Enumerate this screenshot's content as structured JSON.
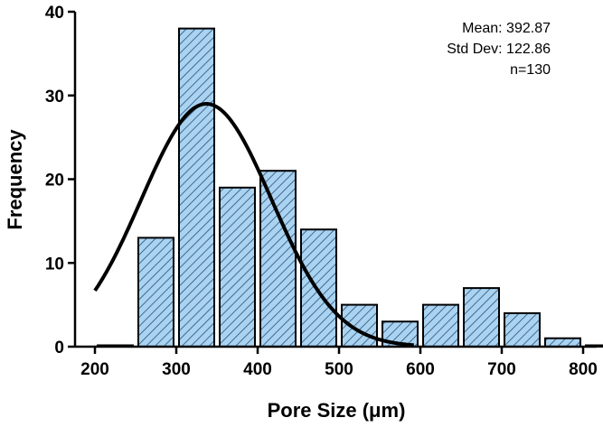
{
  "chart_data": {
    "type": "bar",
    "subtype": "histogram",
    "title": "",
    "xlabel": "Pore Size (μm)",
    "ylabel": "Frequency",
    "xlim": [
      200,
      800
    ],
    "ylim": [
      0,
      40
    ],
    "xticks": [
      200,
      300,
      400,
      500,
      600,
      700,
      800
    ],
    "yticks": [
      0,
      10,
      20,
      30,
      40
    ],
    "bin_width": 50,
    "bins": [
      {
        "center": 225,
        "value": 0
      },
      {
        "center": 275,
        "value": 13
      },
      {
        "center": 325,
        "value": 38
      },
      {
        "center": 375,
        "value": 19
      },
      {
        "center": 425,
        "value": 21
      },
      {
        "center": 475,
        "value": 14
      },
      {
        "center": 525,
        "value": 5
      },
      {
        "center": 575,
        "value": 3
      },
      {
        "center": 625,
        "value": 5
      },
      {
        "center": 675,
        "value": 7
      },
      {
        "center": 725,
        "value": 4
      },
      {
        "center": 775,
        "value": 1
      },
      {
        "center": 825,
        "value": 0
      }
    ],
    "fit_curve": {
      "type": "gaussian",
      "peak_x": 337,
      "peak_y": 29,
      "sigma": 80
    },
    "stats": {
      "mean_label": "Mean: 392.87",
      "std_label": "Std Dev: 122.86",
      "n_label": "n=130"
    },
    "colors": {
      "bar_fill": "#a9d3f0",
      "bar_stroke": "#000000",
      "hatch": "#2b4f78",
      "curve": "#000000"
    },
    "grid": false,
    "legend": "none"
  }
}
